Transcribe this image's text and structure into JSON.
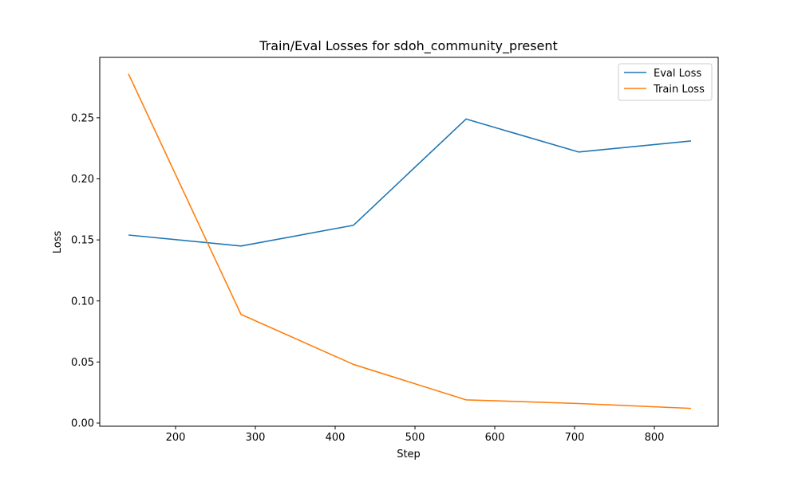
{
  "chart_data": {
    "type": "line",
    "title": "Train/Eval Losses for sdoh_community_present",
    "xlabel": "Step",
    "ylabel": "Loss",
    "xlim": [
      105,
      880
    ],
    "ylim": [
      -0.0026,
      0.2995
    ],
    "xticks": [
      200,
      300,
      400,
      500,
      600,
      700,
      800
    ],
    "yticks": [
      0.0,
      0.05,
      0.1,
      0.15,
      0.2,
      0.25
    ],
    "xtick_labels": [
      "200",
      "300",
      "400",
      "500",
      "600",
      "700",
      "800"
    ],
    "ytick_labels": [
      "0.00",
      "0.05",
      "0.10",
      "0.15",
      "0.20",
      "0.25"
    ],
    "grid": false,
    "legend_position": "top-right",
    "series": [
      {
        "name": "Eval Loss",
        "color": "#1f77b4",
        "x": [
          141,
          282,
          423,
          564,
          705,
          846
        ],
        "y": [
          0.154,
          0.145,
          0.162,
          0.249,
          0.222,
          0.231
        ]
      },
      {
        "name": "Train Loss",
        "color": "#ff7f0e",
        "x": [
          141,
          282,
          423,
          564,
          705,
          846
        ],
        "y": [
          0.286,
          0.089,
          0.048,
          0.019,
          0.016,
          0.012
        ]
      }
    ]
  }
}
